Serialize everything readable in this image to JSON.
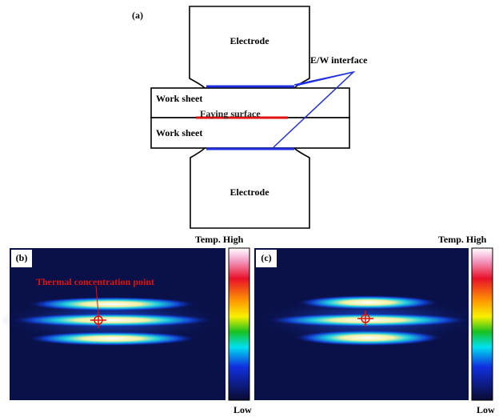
{
  "panel_a": {
    "label": "(a)",
    "electrode_top": "Electrode",
    "interface": "E/W interface",
    "sheet_top": "Work sheet",
    "faying": "Faying surface",
    "sheet_bottom": "Work sheet",
    "electrode_bottom": "Electrode"
  },
  "panel_b": {
    "label": "(b)",
    "annotation": "Thermal concentration point",
    "scale_high": "Temp. High",
    "scale_low": "Low"
  },
  "panel_c": {
    "label": "(c)",
    "scale_high": "Temp. High",
    "scale_low": "Low"
  }
}
